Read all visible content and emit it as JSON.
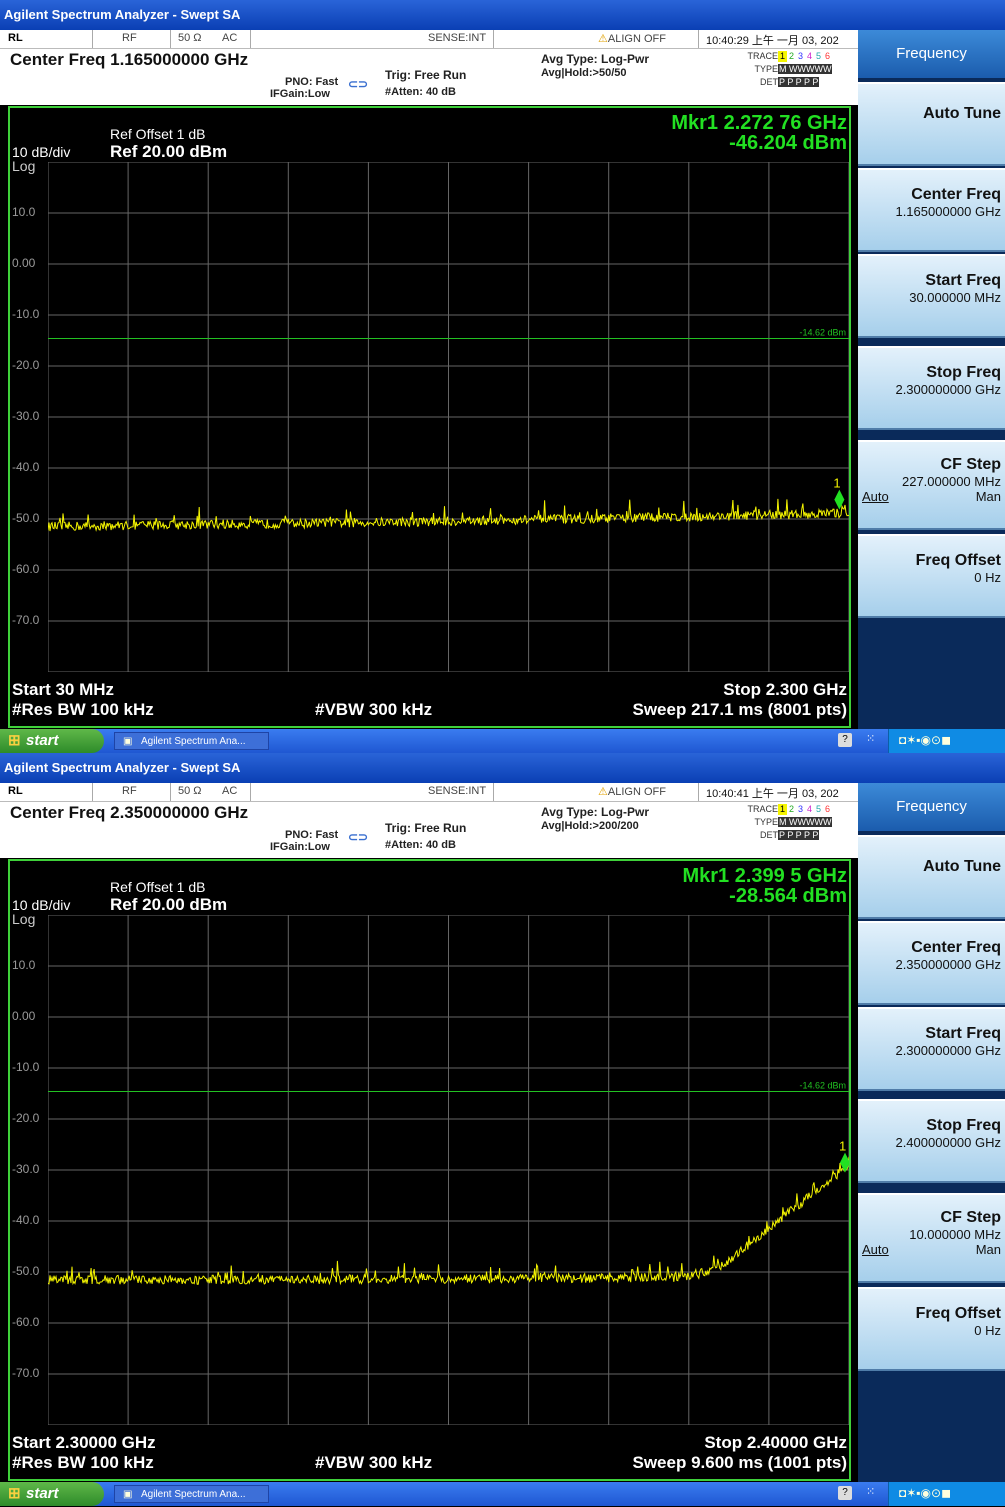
{
  "screens": [
    {
      "window_title": "Agilent Spectrum Analyzer - Swept SA",
      "status": {
        "rl": "RL",
        "rf": "RF",
        "ohm": "50 Ω",
        "ac": "AC",
        "sense": "SENSE:INT",
        "align": "ALIGN OFF",
        "time": "10:40:29 上午 一月 03, 202"
      },
      "center_freq": "Center Freq 1.165000000 GHz",
      "pno": "PNO: Fast",
      "ifgain": "IFGain:Low",
      "trig": "Trig: Free Run",
      "atten": "#Atten: 40 dB",
      "avg_type": "Avg Type: Log-Pwr",
      "avg_hold": "Avg|Hold:>50/50",
      "trace_label": "TRACE",
      "type_label": "TYPE",
      "det_label": "DET",
      "trace_nums": [
        "1",
        "2",
        "3",
        "4",
        "5",
        "6"
      ],
      "type_row": "M WWWWW",
      "det_row": "P P P P P",
      "ref_offset": "Ref Offset 1 dB",
      "scale": "10 dB/div",
      "ref_level": "Ref 20.00 dBm",
      "log_label": "Log",
      "marker_freq": "Mkr1 2.272 76 GHz",
      "marker_amp": "-46.204 dBm",
      "limit_label": "-14.62 dBm",
      "marker_num": "1",
      "start": "Start 30 MHz",
      "stop": "Stop 2.300 GHz",
      "rbw": "#Res BW 100 kHz",
      "vbw": "#VBW 300 kHz",
      "sweep": "Sweep  217.1 ms (8001 pts)",
      "softkeys": {
        "menu_title": "Frequency",
        "auto_tune": "Auto Tune",
        "center_freq": "Center Freq",
        "center_val": "1.165000000 GHz",
        "start_freq": "Start Freq",
        "start_val": "30.000000 MHz",
        "stop_freq": "Stop Freq",
        "stop_val": "2.300000000 GHz",
        "cf_step": "CF Step",
        "cf_val": "227.000000 MHz",
        "auto": "Auto",
        "man": "Man",
        "freq_offset": "Freq Offset",
        "offset_val": "0 Hz"
      },
      "taskbar": {
        "start": "start",
        "task": "Agilent Spectrum Ana..."
      },
      "chart_data": {
        "type": "line",
        "y_ticks": [
          "10.0",
          "0.00",
          "-10.0",
          "-20.0",
          "-30.0",
          "-40.0",
          "-50.0",
          "-60.0",
          "-70.0"
        ],
        "ylim": [
          -80,
          20
        ],
        "x_range_hz": [
          30000000,
          2300000000
        ],
        "limit_line_dbm": -14.62,
        "series": [
          {
            "x_mhz": [
              30,
              300,
              600,
              900,
              1200,
              1500,
              1800,
              2100,
              2300
            ],
            "y_dbm": [
              -51.5,
              -51.2,
              -51.0,
              -50.7,
              -50.4,
              -50.0,
              -49.6,
              -49.2,
              -48.8
            ]
          }
        ],
        "marker": {
          "x_ghz": 2.27276,
          "y_dbm": -46.204
        },
        "colors": {
          "trace": "#f5f500",
          "limit": "#22c022",
          "grid": "#666666"
        }
      }
    },
    {
      "window_title": "Agilent Spectrum Analyzer - Swept SA",
      "status": {
        "rl": "RL",
        "rf": "RF",
        "ohm": "50 Ω",
        "ac": "AC",
        "sense": "SENSE:INT",
        "align": "ALIGN OFF",
        "time": "10:40:41 上午 一月 03, 202"
      },
      "center_freq": "Center Freq 2.350000000 GHz",
      "pno": "PNO: Fast",
      "ifgain": "IFGain:Low",
      "trig": "Trig: Free Run",
      "atten": "#Atten: 40 dB",
      "avg_type": "Avg Type: Log-Pwr",
      "avg_hold": "Avg|Hold:>200/200",
      "trace_label": "TRACE",
      "type_label": "TYPE",
      "det_label": "DET",
      "trace_nums": [
        "1",
        "2",
        "3",
        "4",
        "5",
        "6"
      ],
      "type_row": "M WWWWW",
      "det_row": "P P P P P",
      "ref_offset": "Ref Offset 1 dB",
      "scale": "10 dB/div",
      "ref_level": "Ref 20.00 dBm",
      "log_label": "Log",
      "marker_freq": "Mkr1 2.399 5 GHz",
      "marker_amp": "-28.564 dBm",
      "limit_label": "-14.62 dBm",
      "marker_num": "1",
      "start": "Start 2.30000 GHz",
      "stop": "Stop 2.40000 GHz",
      "rbw": "#Res BW 100 kHz",
      "vbw": "#VBW 300 kHz",
      "sweep": "Sweep  9.600 ms (1001 pts)",
      "softkeys": {
        "menu_title": "Frequency",
        "auto_tune": "Auto Tune",
        "center_freq": "Center Freq",
        "center_val": "2.350000000 GHz",
        "start_freq": "Start Freq",
        "start_val": "2.300000000 GHz",
        "stop_freq": "Stop Freq",
        "stop_val": "2.400000000 GHz",
        "cf_step": "CF Step",
        "cf_val": "10.000000 MHz",
        "auto": "Auto",
        "man": "Man",
        "freq_offset": "Freq Offset",
        "offset_val": "0 Hz"
      },
      "taskbar": {
        "start": "start",
        "task": "Agilent Spectrum Ana..."
      },
      "chart_data": {
        "type": "line",
        "y_ticks": [
          "10.0",
          "0.00",
          "-10.0",
          "-20.0",
          "-30.0",
          "-40.0",
          "-50.0",
          "-60.0",
          "-70.0"
        ],
        "ylim": [
          -80,
          20
        ],
        "x_range_hz": [
          2300000000,
          2400000000
        ],
        "limit_line_dbm": -14.62,
        "series": [
          {
            "x_mhz": [
              2300,
              2320,
              2340,
              2360,
              2380,
              2384,
              2388,
              2392,
              2396,
              2400
            ],
            "y_dbm": [
              -51.5,
              -51.5,
              -51.4,
              -51.3,
              -51.0,
              -49.0,
              -44.0,
              -39.0,
              -34.0,
              -29.0
            ]
          }
        ],
        "marker": {
          "x_ghz": 2.3995,
          "y_dbm": -28.564
        },
        "colors": {
          "trace": "#f5f500",
          "limit": "#22c022",
          "grid": "#666666"
        }
      }
    }
  ]
}
